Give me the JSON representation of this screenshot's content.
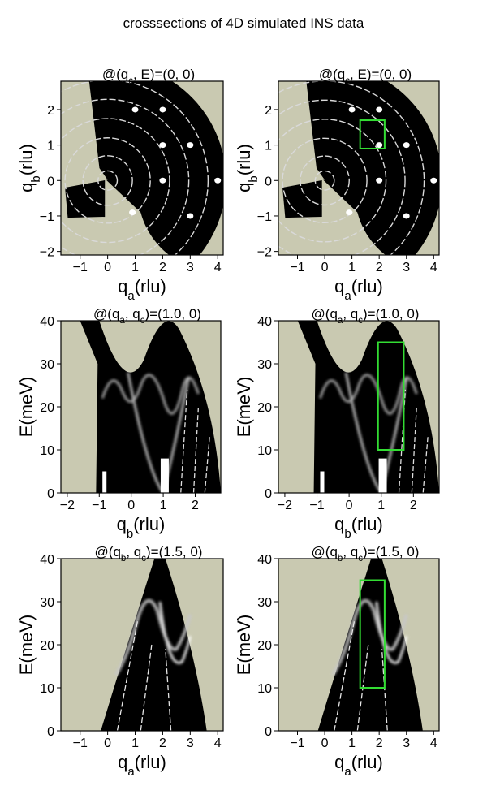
{
  "figure": {
    "title": "crosssections of 4D simulated INS data",
    "colors": {
      "background_fill": "#c9c9b1",
      "intensity_low": "#000000",
      "intensity_high": "#ffffff",
      "roi_box": "#33dd33",
      "axis": "#000000"
    }
  },
  "chart_data": [
    {
      "id": "qa-qb-left",
      "type": "heatmap",
      "title": "@(q_c, E)=(0, 0)",
      "title_parts": [
        "@(q",
        "c",
        ", E)=(0, 0)"
      ],
      "xlabel_parts": [
        "q",
        "a",
        "(rlu)"
      ],
      "ylabel_parts": [
        "q",
        "b",
        "(rlu)"
      ],
      "xlim": [
        -1.7,
        4.2
      ],
      "ylim": [
        -2.1,
        2.8
      ],
      "xticks": [
        -1,
        0,
        1,
        2,
        3,
        4
      ],
      "yticks": [
        -2,
        -1,
        0,
        1,
        2
      ],
      "roi": null
    },
    {
      "id": "qa-qb-right",
      "type": "heatmap",
      "title": "@(q_c, E)=(0, 0)",
      "title_parts": [
        "@(q",
        "c",
        ", E)=(0, 0)"
      ],
      "xlabel_parts": [
        "q",
        "a",
        "(rlu)"
      ],
      "ylabel_parts": [
        "q",
        "b",
        "(rlu)"
      ],
      "xlim": [
        -1.7,
        4.2
      ],
      "ylim": [
        -2.1,
        2.8
      ],
      "xticks": [
        -1,
        0,
        1,
        2,
        3,
        4
      ],
      "yticks": [
        -2,
        -1,
        0,
        1,
        2
      ],
      "roi": {
        "x0": 1.3,
        "x1": 2.2,
        "y0": 0.9,
        "y1": 1.7
      }
    },
    {
      "id": "qb-E-left",
      "type": "heatmap",
      "title": "@(q_a, q_c)=(1.0, 0)",
      "title_parts": [
        "@(q",
        "a",
        ", q",
        "c",
        ")=(1.0, 0)"
      ],
      "xlabel_parts": [
        "q",
        "b",
        "(rlu)"
      ],
      "ylabel_parts": [
        "E(meV)"
      ],
      "xlim": [
        -2.2,
        2.8
      ],
      "ylim": [
        0,
        40
      ],
      "xticks": [
        -2,
        -1,
        0,
        1,
        2
      ],
      "yticks": [
        0,
        10,
        20,
        30,
        40
      ],
      "roi": null
    },
    {
      "id": "qb-E-right",
      "type": "heatmap",
      "title": "@(q_a, q_c)=(1.0, 0)",
      "title_parts": [
        "@(q",
        "a",
        ", q",
        "c",
        ")=(1.0, 0)"
      ],
      "xlabel_parts": [
        "q",
        "b",
        "(rlu)"
      ],
      "ylabel_parts": [
        "E(meV)"
      ],
      "xlim": [
        -2.2,
        2.8
      ],
      "ylim": [
        0,
        40
      ],
      "xticks": [
        -2,
        -1,
        0,
        1,
        2
      ],
      "yticks": [
        0,
        10,
        20,
        30,
        40
      ],
      "roi": {
        "x0": 0.9,
        "x1": 1.7,
        "y0": 10,
        "y1": 35
      }
    },
    {
      "id": "qa-E-left",
      "type": "heatmap",
      "title": "@(q_b, q_c)=(1.5, 0)",
      "title_parts": [
        "@(q",
        "b",
        ", q",
        "c",
        ")=(1.5, 0)"
      ],
      "xlabel_parts": [
        "q",
        "a",
        "(rlu)"
      ],
      "ylabel_parts": [
        "E(meV)"
      ],
      "xlim": [
        -1.7,
        4.2
      ],
      "ylim": [
        0,
        40
      ],
      "xticks": [
        -1,
        0,
        1,
        2,
        3,
        4
      ],
      "yticks": [
        0,
        10,
        20,
        30,
        40
      ],
      "roi": null
    },
    {
      "id": "qa-E-right",
      "type": "heatmap",
      "title": "@(q_b, q_c)=(1.5, 0)",
      "title_parts": [
        "@(q",
        "b",
        ", q",
        "c",
        ")=(1.5, 0)"
      ],
      "xlabel_parts": [
        "q",
        "a",
        "(rlu)"
      ],
      "ylabel_parts": [
        "E(meV)"
      ],
      "xlim": [
        -1.7,
        4.2
      ],
      "ylim": [
        0,
        40
      ],
      "xticks": [
        -1,
        0,
        1,
        2,
        3,
        4
      ],
      "yticks": [
        0,
        10,
        20,
        30,
        40
      ],
      "roi": {
        "x0": 1.3,
        "x1": 2.2,
        "y0": 10,
        "y1": 35
      }
    }
  ]
}
